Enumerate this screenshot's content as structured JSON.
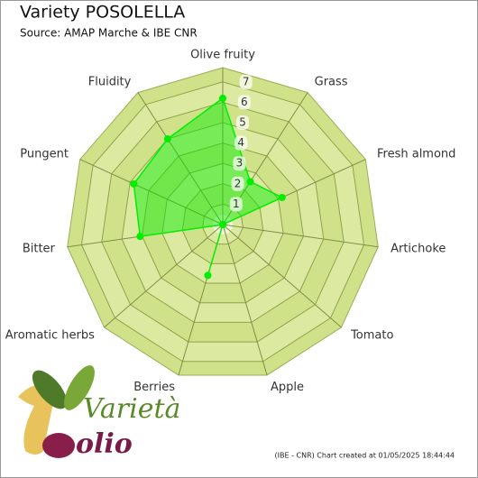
{
  "chart_data": {
    "type": "radar",
    "title": "Variety POSOLELLA",
    "subtitle": "Source: AMAP Marche & IBE CNR",
    "categories": [
      "Olive fruity",
      "Grass",
      "Fresh almond",
      "Artichoke",
      "Tomato",
      "Apple",
      "Berries",
      "Aromatic herbs",
      "Bitter",
      "Pungent",
      "Fluidity"
    ],
    "values": [
      6.2,
      2.5,
      3.2,
      0,
      0,
      0,
      2.6,
      0,
      4.1,
      4.8,
      5.0
    ],
    "color": "#00ee00",
    "ylim": [
      0,
      7.7
    ],
    "yticks": [
      1,
      2,
      3,
      4,
      5,
      6,
      7
    ],
    "grid": true
  },
  "footer": "(IBE - CNR) Chart created at 01/05/2025 18:44:44",
  "logo": {
    "line1": "Varietà",
    "line2": "olio"
  }
}
